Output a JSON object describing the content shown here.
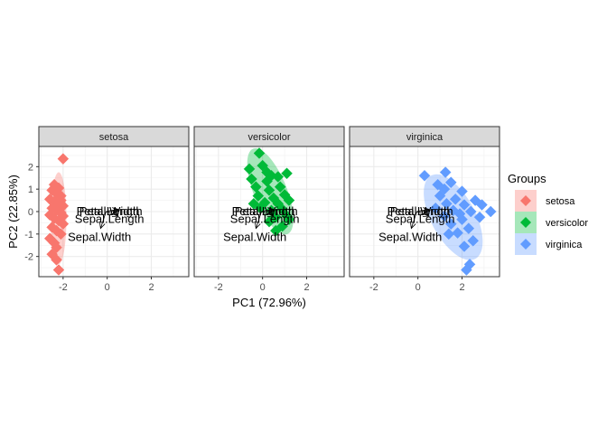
{
  "chart_data": {
    "type": "scatter",
    "xlabel": "PC1 (72.96%)",
    "ylabel": "PC2 (22.85%)",
    "xlim": [
      -3.1,
      3.7
    ],
    "ylim": [
      -2.9,
      2.9
    ],
    "x_ticks": [
      -2,
      0,
      2
    ],
    "y_ticks": [
      -2,
      -1,
      0,
      1,
      2
    ],
    "x_tick_labels": [
      "-2",
      "0",
      "2"
    ],
    "y_tick_labels": [
      "-2",
      "-1",
      "0",
      "1",
      "2"
    ],
    "grid": true,
    "legend_position": "right",
    "legend_title": "Groups",
    "arrow_origin": [
      -0.05,
      0.0
    ],
    "loadings": [
      {
        "label": "Petal.Length",
        "x": 0.55,
        "y": 0.05,
        "label_x": 0.1,
        "label_y": 0.0
      },
      {
        "label": "Petal.Width",
        "x": 0.5,
        "y": 0.1,
        "label_x": 0.1,
        "label_y": 0.0
      },
      {
        "label": "Sepal.Length",
        "x": 0.5,
        "y": -0.2,
        "label_x": 0.1,
        "label_y": -0.35
      },
      {
        "label": "Sepal.Width",
        "x": -0.3,
        "y": -0.75,
        "label_x": -0.35,
        "label_y": -1.15
      }
    ],
    "panels": [
      {
        "strip": "setosa",
        "color": "#F8766D",
        "ellipse": {
          "cx": -2.2,
          "cy": -0.3,
          "rx": 0.35,
          "ry": 2.05,
          "angle": 0
        },
        "points": [
          {
            "x": -2.0,
            "y": 2.35
          },
          {
            "x": -2.4,
            "y": 1.2
          },
          {
            "x": -2.2,
            "y": 1.05
          },
          {
            "x": -2.5,
            "y": 0.95
          },
          {
            "x": -2.3,
            "y": 0.8
          },
          {
            "x": -2.1,
            "y": 0.7
          },
          {
            "x": -2.6,
            "y": 0.55
          },
          {
            "x": -2.4,
            "y": 0.45
          },
          {
            "x": -2.2,
            "y": 0.35
          },
          {
            "x": -2.0,
            "y": 0.25
          },
          {
            "x": -2.5,
            "y": 0.15
          },
          {
            "x": -2.3,
            "y": 0.05
          },
          {
            "x": -2.1,
            "y": -0.05
          },
          {
            "x": -2.6,
            "y": -0.15
          },
          {
            "x": -2.4,
            "y": -0.3
          },
          {
            "x": -2.2,
            "y": -0.4
          },
          {
            "x": -2.0,
            "y": -0.55
          },
          {
            "x": -2.5,
            "y": -0.7
          },
          {
            "x": -2.3,
            "y": -0.85
          },
          {
            "x": -2.1,
            "y": -1.0
          },
          {
            "x": -2.6,
            "y": -1.2
          },
          {
            "x": -2.4,
            "y": -1.4
          },
          {
            "x": -2.3,
            "y": -1.6
          },
          {
            "x": -2.5,
            "y": -1.9
          },
          {
            "x": -2.3,
            "y": -2.15
          },
          {
            "x": -2.2,
            "y": -2.6
          },
          {
            "x": -2.0,
            "y": -0.2
          },
          {
            "x": -2.1,
            "y": 0.5
          }
        ]
      },
      {
        "strip": "versicolor",
        "color": "#00BA38",
        "ellipse": {
          "cx": 0.35,
          "cy": 0.9,
          "rx": 0.75,
          "ry": 2.05,
          "angle": -22
        },
        "points": [
          {
            "x": -0.15,
            "y": 2.6
          },
          {
            "x": -0.6,
            "y": 1.9
          },
          {
            "x": 0.0,
            "y": 2.05
          },
          {
            "x": 0.4,
            "y": 1.6
          },
          {
            "x": -0.5,
            "y": 1.45
          },
          {
            "x": 0.2,
            "y": 1.35
          },
          {
            "x": 0.7,
            "y": 1.55
          },
          {
            "x": 1.1,
            "y": 1.7
          },
          {
            "x": -0.3,
            "y": 1.1
          },
          {
            "x": 0.3,
            "y": 0.95
          },
          {
            "x": 0.8,
            "y": 1.1
          },
          {
            "x": -0.2,
            "y": 0.7
          },
          {
            "x": 0.5,
            "y": 0.6
          },
          {
            "x": 1.0,
            "y": 0.75
          },
          {
            "x": 0.1,
            "y": 0.4
          },
          {
            "x": 0.7,
            "y": 0.35
          },
          {
            "x": 1.2,
            "y": 0.5
          },
          {
            "x": -0.1,
            "y": 0.15
          },
          {
            "x": 0.4,
            "y": 0.05
          },
          {
            "x": 0.9,
            "y": 0.1
          },
          {
            "x": 0.6,
            "y": -0.25
          },
          {
            "x": 1.1,
            "y": -0.2
          },
          {
            "x": 0.3,
            "y": -0.45
          },
          {
            "x": 0.9,
            "y": -0.65
          },
          {
            "x": 0.6,
            "y": -0.85
          },
          {
            "x": 1.2,
            "y": -0.35
          },
          {
            "x": 0.2,
            "y": 1.75
          },
          {
            "x": -0.4,
            "y": 0.35
          }
        ]
      },
      {
        "strip": "virginica",
        "color": "#619CFF",
        "ellipse": {
          "cx": 1.6,
          "cy": -0.25,
          "rx": 1.0,
          "ry": 2.1,
          "angle": -28
        },
        "points": [
          {
            "x": 0.3,
            "y": 1.6
          },
          {
            "x": 1.25,
            "y": 1.75
          },
          {
            "x": 0.9,
            "y": 1.2
          },
          {
            "x": 1.5,
            "y": 1.3
          },
          {
            "x": 1.2,
            "y": 1.0
          },
          {
            "x": 2.0,
            "y": 0.9
          },
          {
            "x": 1.0,
            "y": 0.7
          },
          {
            "x": 1.7,
            "y": 0.55
          },
          {
            "x": 2.6,
            "y": 0.5
          },
          {
            "x": 1.3,
            "y": 0.35
          },
          {
            "x": 2.1,
            "y": 0.3
          },
          {
            "x": 0.8,
            "y": 0.15
          },
          {
            "x": 1.6,
            "y": 0.05
          },
          {
            "x": 2.4,
            "y": 0.0
          },
          {
            "x": 3.3,
            "y": 0.0
          },
          {
            "x": 1.2,
            "y": -0.2
          },
          {
            "x": 2.0,
            "y": -0.35
          },
          {
            "x": 2.8,
            "y": -0.25
          },
          {
            "x": 1.5,
            "y": -0.55
          },
          {
            "x": 2.3,
            "y": -0.75
          },
          {
            "x": 1.8,
            "y": -0.95
          },
          {
            "x": 2.5,
            "y": -1.3
          },
          {
            "x": 2.1,
            "y": -1.55
          },
          {
            "x": 2.35,
            "y": -2.35
          },
          {
            "x": 2.2,
            "y": -2.6
          },
          {
            "x": 1.4,
            "y": -1.0
          },
          {
            "x": 2.9,
            "y": 0.3
          },
          {
            "x": 1.9,
            "y": -0.1
          }
        ]
      }
    ]
  }
}
